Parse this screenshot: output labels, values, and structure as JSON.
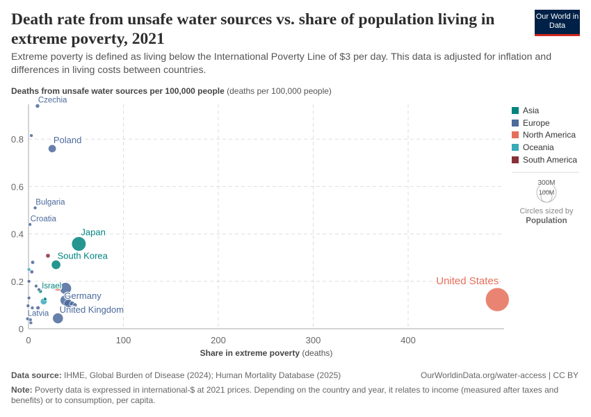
{
  "header": {
    "title": "Death rate from unsafe water sources vs. share of population living in extreme poverty, 2021",
    "subtitle": "Extreme poverty is defined as living below the International Poverty Line of $3 per day. This data is adjusted for inflation and differences in living costs between countries.",
    "logo": "Our World in Data"
  },
  "chart_data": {
    "type": "scatter",
    "title": "Death rate from unsafe water sources vs. share of population living in extreme poverty, 2021",
    "ylabel_bold": "Deaths from unsafe water sources per 100,000 people",
    "ylabel_unit": "(deaths per 100,000 people)",
    "xlabel": "Share in extreme poverty",
    "xlabel_unit": "(deaths)",
    "xlim": [
      0,
      495
    ],
    "ylim": [
      0,
      0.95
    ],
    "xticks": [
      "0",
      "100",
      "200",
      "300",
      "400"
    ],
    "yticks": [
      "0",
      "0.2",
      "0.4",
      "0.6",
      "0.8"
    ],
    "grid": true,
    "legend_position": "right",
    "size_legend": {
      "large": "300M",
      "small": "100M",
      "caption": "Circles sized by",
      "variable": "Population"
    },
    "legend": [
      {
        "name": "Asia",
        "color": "#00847e"
      },
      {
        "name": "Europe",
        "color": "#4c6a9c"
      },
      {
        "name": "North America",
        "color": "#e56e5a"
      },
      {
        "name": "Oceania",
        "color": "#38aaba"
      },
      {
        "name": "South America",
        "color": "#883039"
      }
    ],
    "points": [
      {
        "label": "Czechia",
        "continent": "Europe",
        "x": 9.5,
        "y": 0.94,
        "pop": 10.5
      },
      {
        "label": "",
        "continent": "Europe",
        "x": 3,
        "y": 0.815,
        "pop": 2
      },
      {
        "label": "Poland",
        "continent": "Europe",
        "x": 25,
        "y": 0.76,
        "pop": 38
      },
      {
        "label": "Bulgaria",
        "continent": "Europe",
        "x": 7,
        "y": 0.51,
        "pop": 6.9
      },
      {
        "label": "Croatia",
        "continent": "Europe",
        "x": 1.5,
        "y": 0.44,
        "pop": 3.9
      },
      {
        "label": "Japan",
        "continent": "Asia",
        "x": 53,
        "y": 0.358,
        "pop": 124
      },
      {
        "label": "",
        "continent": "South America",
        "x": 20.5,
        "y": 0.308,
        "pop": 12
      },
      {
        "label": "South Korea",
        "continent": "Asia",
        "x": 29,
        "y": 0.27,
        "pop": 52
      },
      {
        "label": "",
        "continent": "Europe",
        "x": 4.4,
        "y": 0.28,
        "pop": 9
      },
      {
        "label": "",
        "continent": "Oceania",
        "x": 0.5,
        "y": 0.25,
        "pop": 5
      },
      {
        "label": "",
        "continent": "Europe",
        "x": 3.5,
        "y": 0.24,
        "pop": 9
      },
      {
        "label": "",
        "continent": "Europe",
        "x": 0.5,
        "y": 0.2,
        "pop": 4
      },
      {
        "label": "",
        "continent": "Europe",
        "x": 8,
        "y": 0.18,
        "pop": 3
      },
      {
        "label": "",
        "continent": "Europe",
        "x": 11,
        "y": 0.165,
        "pop": 5
      },
      {
        "label": "Israel",
        "continent": "Asia",
        "x": 12.5,
        "y": 0.158,
        "pop": 9.5
      },
      {
        "label": "",
        "continent": "North America",
        "x": 31,
        "y": 0.176,
        "pop": 38
      },
      {
        "label": "Germany",
        "continent": "Europe",
        "x": 39,
        "y": 0.17,
        "pop": 84
      },
      {
        "label": "",
        "continent": "Europe",
        "x": 0.5,
        "y": 0.13,
        "pop": 2
      },
      {
        "label": "",
        "continent": "Oceania",
        "x": 16,
        "y": 0.115,
        "pop": 26
      },
      {
        "label": "",
        "continent": "Asia",
        "x": 17.5,
        "y": 0.125,
        "pop": 6
      },
      {
        "label": "",
        "continent": "Europe",
        "x": 39,
        "y": 0.12,
        "pop": 68
      },
      {
        "label": "",
        "continent": "Europe",
        "x": 42,
        "y": 0.105,
        "pop": 48
      },
      {
        "label": "",
        "continent": "Europe",
        "x": 46,
        "y": 0.105,
        "pop": 17
      },
      {
        "label": "",
        "continent": "Europe",
        "x": 49,
        "y": 0.1,
        "pop": 11
      },
      {
        "label": "",
        "continent": "Europe",
        "x": -0.5,
        "y": 0.097,
        "pop": 1.5
      },
      {
        "label": "",
        "continent": "Europe",
        "x": 4,
        "y": 0.088,
        "pop": 5.5
      },
      {
        "label": "",
        "continent": "Europe",
        "x": 10,
        "y": 0.088,
        "pop": 10
      },
      {
        "label": "United Kingdom",
        "continent": "Europe",
        "x": 31,
        "y": 0.044,
        "pop": 68
      },
      {
        "label": "Latvia",
        "continent": "Europe",
        "x": -1,
        "y": 0.042,
        "pop": 1.9
      },
      {
        "label": "",
        "continent": "Europe",
        "x": 2,
        "y": 0.038,
        "pop": 1.3
      },
      {
        "label": "",
        "continent": "Europe",
        "x": 2.5,
        "y": 0.025,
        "pop": 5.4
      },
      {
        "label": "United States",
        "continent": "North America",
        "x": 494,
        "y": 0.123,
        "pop": 340
      }
    ]
  },
  "footer": {
    "source_label": "Data source:",
    "source": "IHME, Global Burden of Disease (2024); Human Mortality Database (2025)",
    "url": "OurWorldinData.org/water-access | CC BY",
    "note_label": "Note:",
    "note": "Poverty data is expressed in international-$ at 2021 prices. Depending on the country and year, it relates to income (measured after taxes and benefits) or to consumption, per capita."
  }
}
